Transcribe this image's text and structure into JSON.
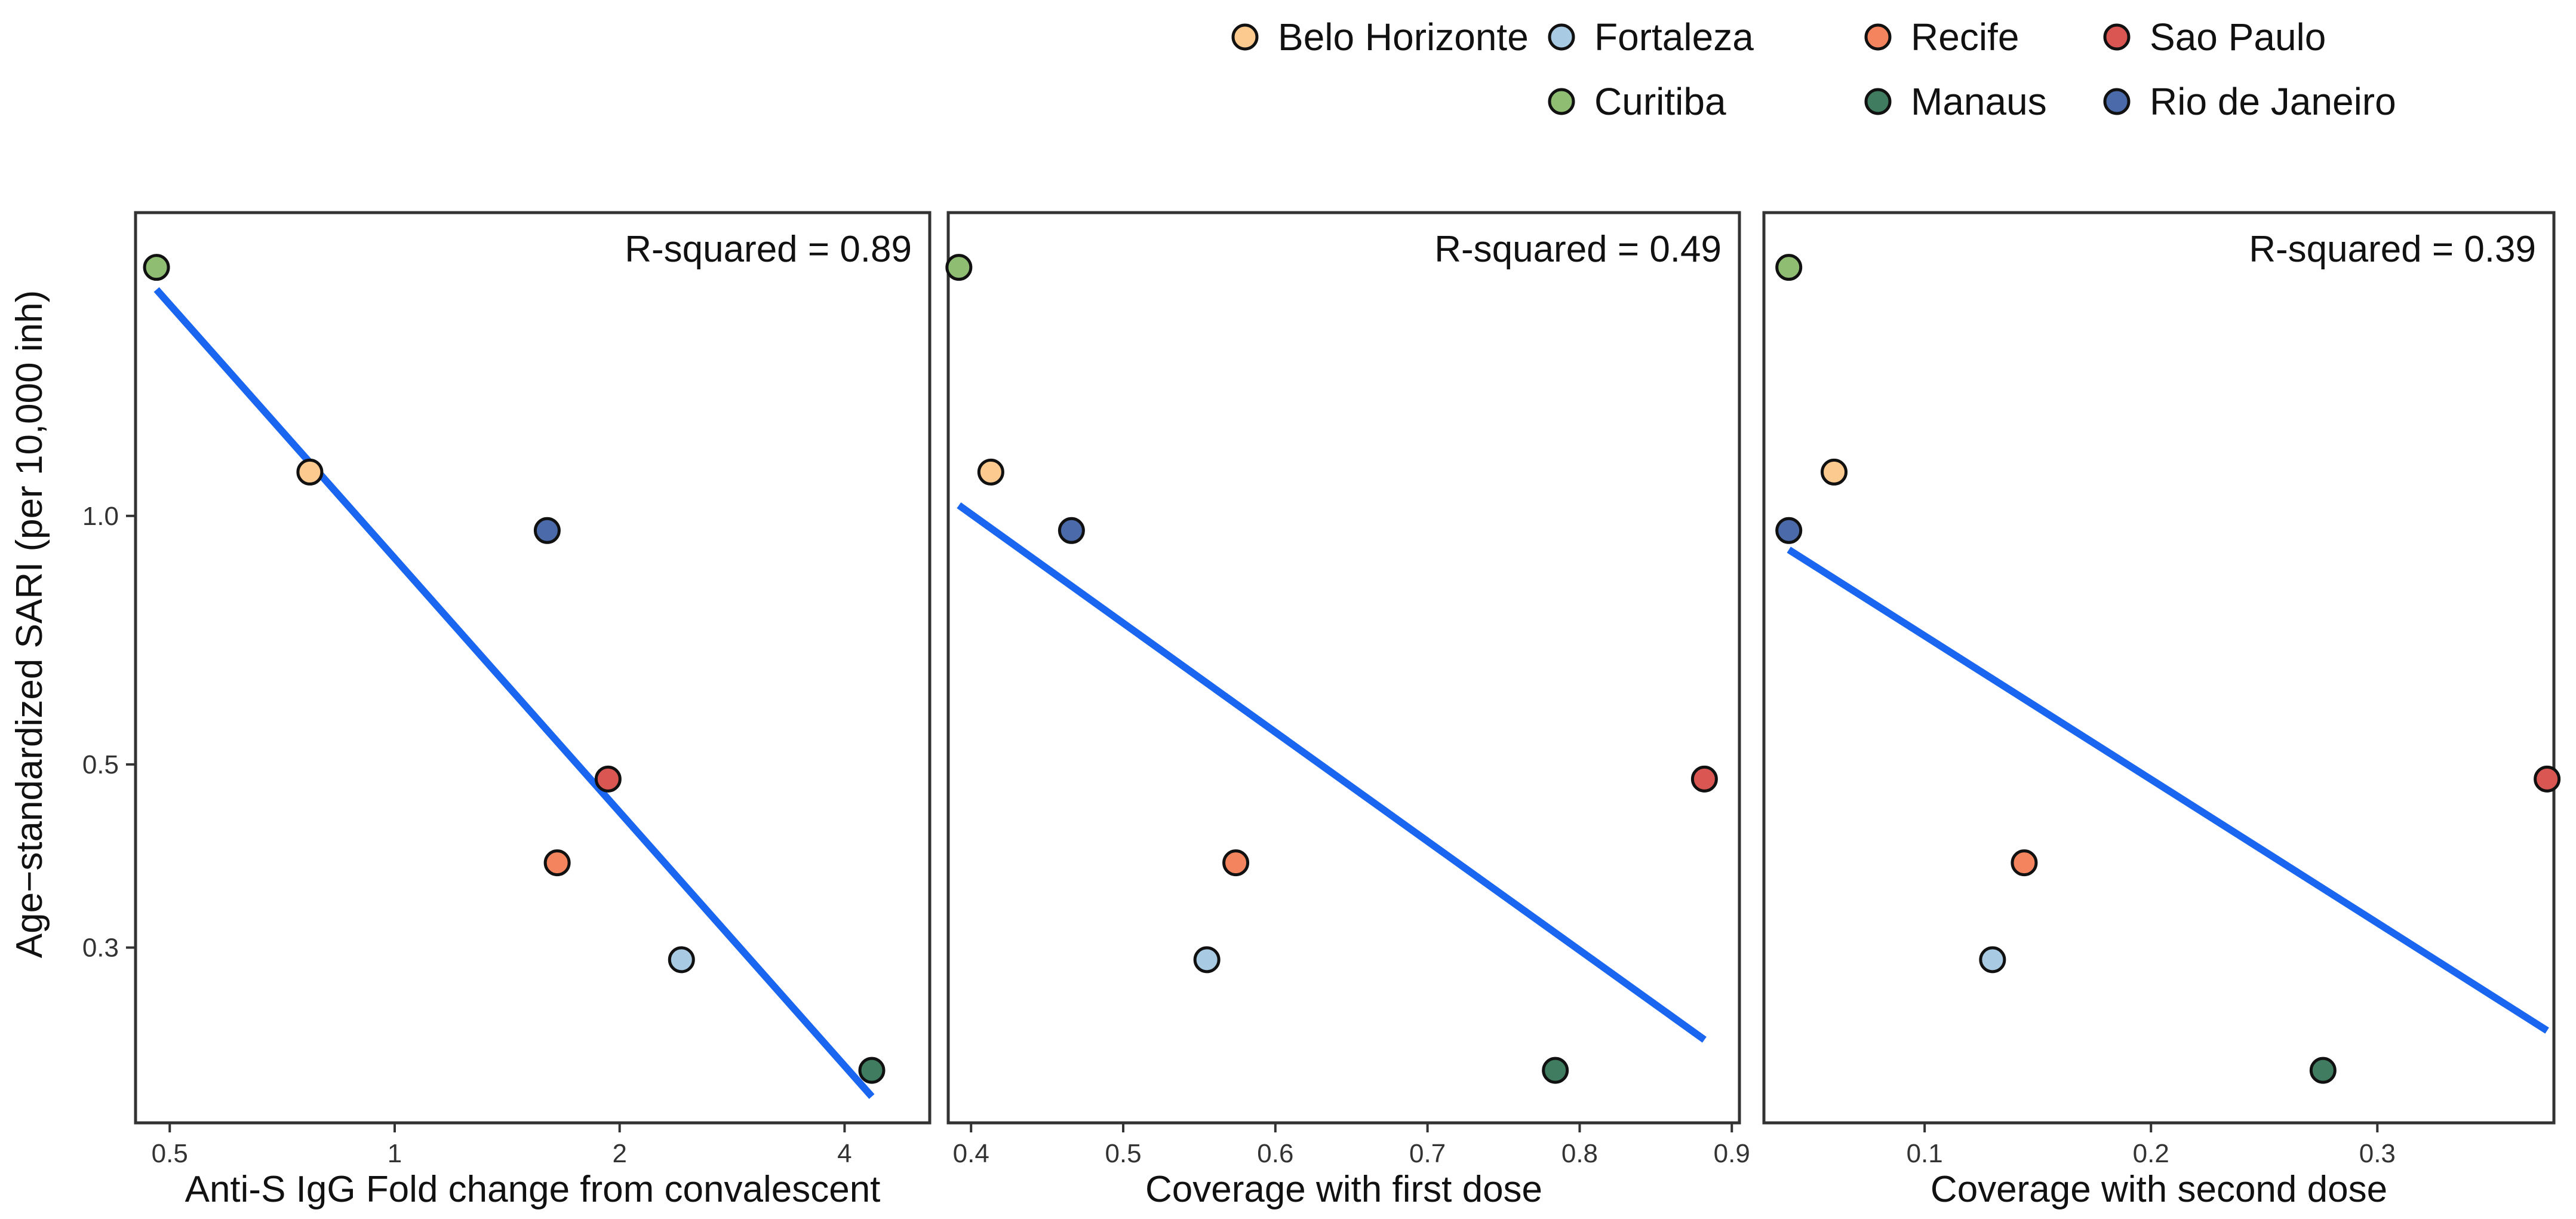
{
  "chart_data": {
    "type": "scatter",
    "ylabel": "Age−standardized SARI (per 10,000 inh)",
    "yscale": "log",
    "ylim": [
      0.184,
      2.33
    ],
    "yticks": [
      {
        "value": 0.3,
        "label": "0.3"
      },
      {
        "value": 0.5,
        "label": "0.5"
      },
      {
        "value": 1.0,
        "label": "1.0"
      }
    ],
    "legend": {
      "placement": "top-right",
      "entries": [
        {
          "name": "Belo Horizonte",
          "color": "#fcc98e"
        },
        {
          "name": "Fortaleza",
          "color": "#a8cbe3"
        },
        {
          "name": "Recife",
          "color": "#f4845d"
        },
        {
          "name": "Sao Paulo",
          "color": "#d95652"
        },
        {
          "name": "Curitiba",
          "color": "#8fbe73"
        },
        {
          "name": "Manaus",
          "color": "#3f7c60"
        },
        {
          "name": "Rio de Janeiro",
          "color": "#4a6aaa"
        }
      ]
    },
    "panels": [
      {
        "xlabel": "Anti-S IgG Fold change from convalescent",
        "xscale": "log",
        "xlim": [
          0.45,
          5.2
        ],
        "xticks": [
          {
            "value": 0.5,
            "label": "0.5"
          },
          {
            "value": 1,
            "label": "1"
          },
          {
            "value": 2,
            "label": "2"
          },
          {
            "value": 4,
            "label": "4"
          }
        ],
        "annotation": "R-squared = 0.89",
        "points": [
          {
            "city": "Curitiba",
            "x": 0.48,
            "y": 2.0
          },
          {
            "city": "Belo Horizonte",
            "x": 0.77,
            "y": 1.13
          },
          {
            "city": "Rio de Janeiro",
            "x": 1.6,
            "y": 0.96
          },
          {
            "city": "Sao Paulo",
            "x": 1.93,
            "y": 0.48
          },
          {
            "city": "Recife",
            "x": 1.65,
            "y": 0.38
          },
          {
            "city": "Fortaleza",
            "x": 2.42,
            "y": 0.29
          },
          {
            "city": "Manaus",
            "x": 4.35,
            "y": 0.213
          }
        ],
        "fit": {
          "x": [
            0.48,
            4.35
          ],
          "y": [
            1.88,
            0.198
          ]
        }
      },
      {
        "xlabel": "Coverage with first dose",
        "xscale": "linear",
        "xlim": [
          0.385,
          0.905
        ],
        "xticks": [
          {
            "value": 0.4,
            "label": "0.4"
          },
          {
            "value": 0.5,
            "label": "0.5"
          },
          {
            "value": 0.6,
            "label": "0.6"
          },
          {
            "value": 0.7,
            "label": "0.7"
          },
          {
            "value": 0.8,
            "label": "0.8"
          },
          {
            "value": 0.9,
            "label": "0.9"
          }
        ],
        "annotation": "R-squared = 0.49",
        "points": [
          {
            "city": "Curitiba",
            "x": 0.392,
            "y": 2.0
          },
          {
            "city": "Belo Horizonte",
            "x": 0.413,
            "y": 1.13
          },
          {
            "city": "Rio de Janeiro",
            "x": 0.466,
            "y": 0.96
          },
          {
            "city": "Sao Paulo",
            "x": 0.882,
            "y": 0.48
          },
          {
            "city": "Recife",
            "x": 0.574,
            "y": 0.38
          },
          {
            "city": "Fortaleza",
            "x": 0.555,
            "y": 0.29
          },
          {
            "city": "Manaus",
            "x": 0.784,
            "y": 0.213
          }
        ],
        "fit": {
          "x": [
            0.392,
            0.882
          ],
          "y": [
            1.03,
            0.232
          ]
        }
      },
      {
        "xlabel": "Coverage with second dose",
        "xscale": "linear",
        "xlim": [
          0.029,
          0.378
        ],
        "xticks": [
          {
            "value": 0.1,
            "label": "0.1"
          },
          {
            "value": 0.2,
            "label": "0.2"
          },
          {
            "value": 0.3,
            "label": "0.3"
          }
        ],
        "annotation": "R-squared = 0.39",
        "points": [
          {
            "city": "Curitiba",
            "x": 0.04,
            "y": 2.0
          },
          {
            "city": "Belo Horizonte",
            "x": 0.06,
            "y": 1.13
          },
          {
            "city": "Rio de Janeiro",
            "x": 0.04,
            "y": 0.96
          },
          {
            "city": "Sao Paulo",
            "x": 0.375,
            "y": 0.48
          },
          {
            "city": "Recife",
            "x": 0.144,
            "y": 0.38
          },
          {
            "city": "Fortaleza",
            "x": 0.13,
            "y": 0.29
          },
          {
            "city": "Manaus",
            "x": 0.276,
            "y": 0.213
          }
        ],
        "fit": {
          "x": [
            0.04,
            0.375
          ],
          "y": [
            0.91,
            0.238
          ]
        }
      }
    ]
  }
}
